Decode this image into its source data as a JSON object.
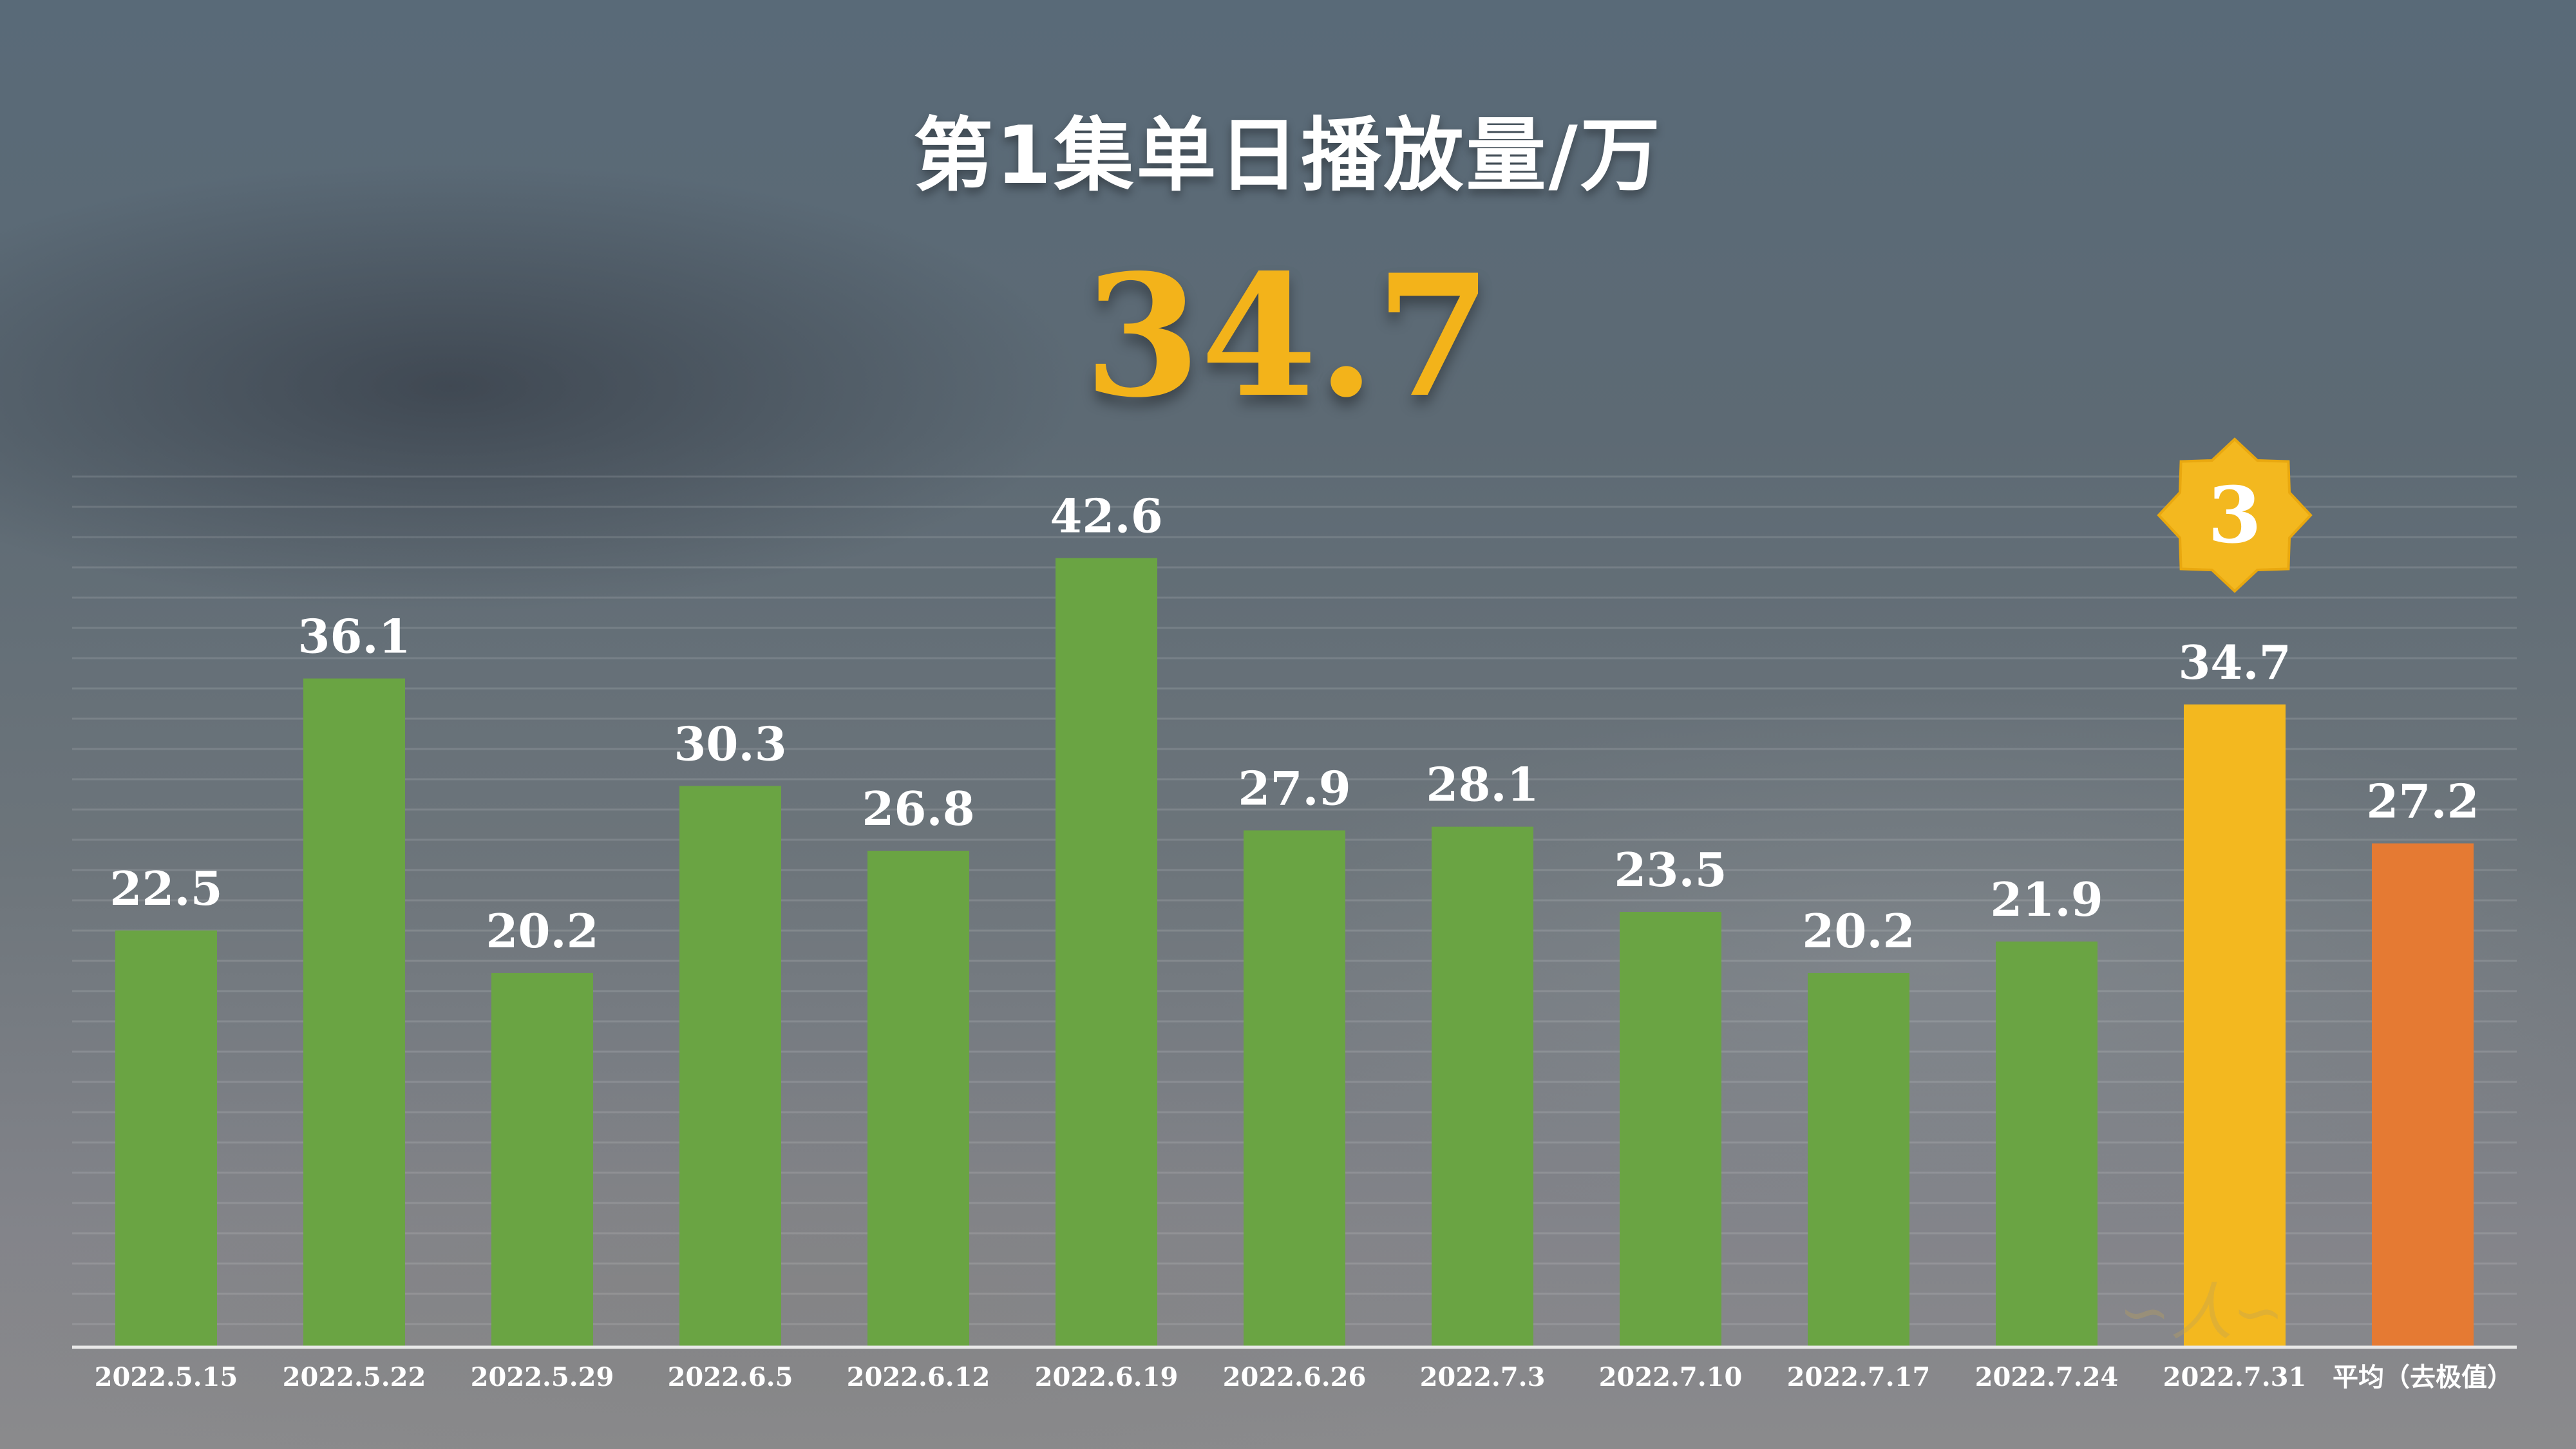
{
  "header": {
    "title": "第1集单日播放量/万",
    "highlight_value": "34.7"
  },
  "badge": {
    "label": "3"
  },
  "chart_data": {
    "type": "bar",
    "title": "第1集单日播放量/万",
    "categories": [
      "2022.5.15",
      "2022.5.22",
      "2022.5.29",
      "2022.6.5",
      "2022.6.12",
      "2022.6.19",
      "2022.6.26",
      "2022.7.3",
      "2022.7.10",
      "2022.7.17",
      "2022.7.24",
      "2022.7.31",
      "平均（去极值）"
    ],
    "values": [
      22.5,
      36.1,
      20.2,
      30.3,
      26.8,
      42.6,
      27.9,
      28.1,
      23.5,
      20.2,
      21.9,
      34.7,
      27.2
    ],
    "value_labels": [
      "22.5",
      "36.1",
      "20.2",
      "30.3",
      "26.8",
      "42.6",
      "27.9",
      "28.1",
      "23.5",
      "20.2",
      "21.9",
      "34.7",
      "27.2"
    ],
    "ylim": [
      0,
      47
    ],
    "grid": true,
    "colors": {
      "default": "#6aa443",
      "highlight": "#f3b81f",
      "average": "#e57a33"
    },
    "highlight_index": 11,
    "average_index": 12
  }
}
